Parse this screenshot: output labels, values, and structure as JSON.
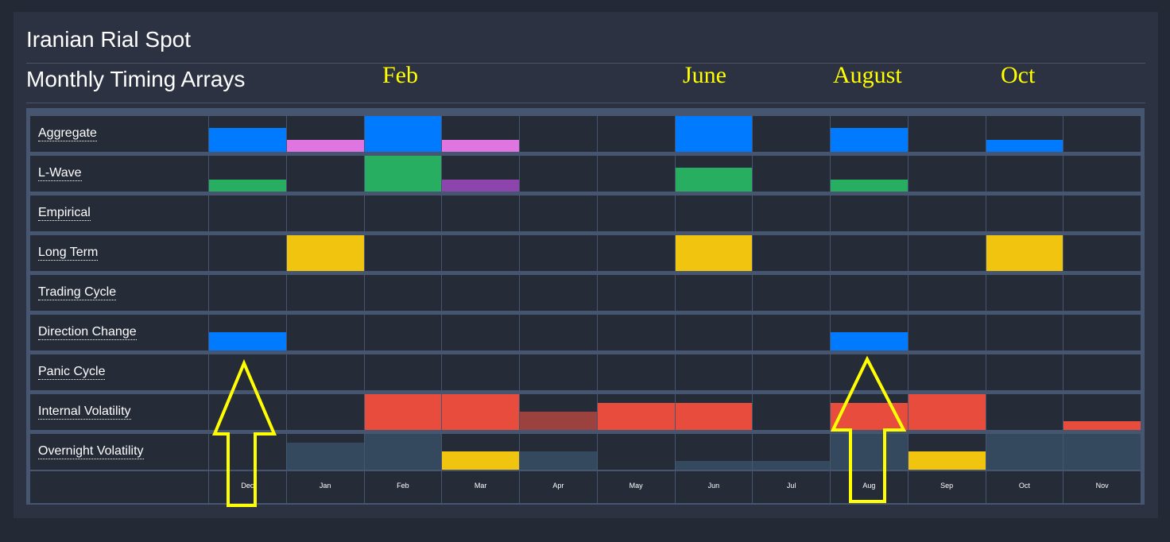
{
  "header": {
    "title": "Iranian Rial Spot",
    "subtitle": "Monthly Timing Arrays"
  },
  "annotations": {
    "labels": [
      "Feb",
      "June",
      "August",
      "Oct"
    ],
    "arrows": [
      "up-arrow-dec",
      "up-arrow-aug"
    ],
    "color": "#ffff00"
  },
  "chart_data": {
    "type": "heatmap",
    "title": "Monthly Timing Arrays",
    "categories": [
      "Dec",
      "Jan",
      "Feb",
      "Mar",
      "Apr",
      "May",
      "Jun",
      "Jul",
      "Aug",
      "Sep",
      "Oct",
      "Nov"
    ],
    "rows": [
      {
        "name": "Aggregate",
        "values": [
          0.67,
          0.33,
          1,
          0.33,
          0,
          0,
          1,
          0,
          0.67,
          0,
          0.33,
          0
        ],
        "colors": [
          "#007bff",
          "#e074e0",
          "#007bff",
          "#e074e0",
          "",
          "",
          "#007bff",
          "",
          "#007bff",
          "",
          "#007bff",
          ""
        ]
      },
      {
        "name": "L-Wave",
        "values": [
          0.33,
          0,
          1,
          0.33,
          0,
          0,
          0.67,
          0,
          0.33,
          0,
          0,
          0
        ],
        "colors": [
          "#27ae60",
          "",
          "#27ae60",
          "#8e44ad",
          "",
          "",
          "#27ae60",
          "",
          "#27ae60",
          "",
          "",
          ""
        ]
      },
      {
        "name": "Empirical",
        "values": [
          0,
          0,
          0,
          0,
          0,
          0,
          0,
          0,
          0,
          0,
          0,
          0
        ],
        "colors": []
      },
      {
        "name": "Long Term",
        "values": [
          0,
          1,
          0,
          0,
          0,
          0,
          1,
          0,
          0,
          0,
          1,
          0
        ],
        "colors": [
          "",
          "#f1c40f",
          "",
          "",
          "",
          "",
          "#f1c40f",
          "",
          "",
          "",
          "#f1c40f",
          ""
        ]
      },
      {
        "name": "Trading Cycle",
        "values": [
          0,
          0,
          0,
          0,
          0,
          0,
          0,
          0,
          0,
          0,
          0,
          0
        ],
        "colors": []
      },
      {
        "name": "Direction Change",
        "values": [
          0.5,
          0,
          0,
          0,
          0,
          0,
          0,
          0,
          0.5,
          0,
          0,
          0
        ],
        "colors": [
          "#007bff",
          "",
          "",
          "",
          "",
          "",
          "",
          "",
          "#007bff",
          "",
          "",
          ""
        ]
      },
      {
        "name": "Panic Cycle",
        "values": [
          0,
          0,
          0,
          0,
          0,
          0,
          0,
          0,
          0,
          0,
          0,
          0
        ],
        "colors": []
      },
      {
        "name": "Internal Volatility",
        "values": [
          0,
          0,
          1,
          1,
          0.5,
          0.75,
          0.75,
          0,
          0.75,
          1,
          0,
          0.25
        ],
        "colors": [
          "",
          "",
          "#e74c3c",
          "#e74c3c",
          "#9b423f",
          "#e74c3c",
          "#e74c3c",
          "",
          "#e74c3c",
          "#e74c3c",
          "",
          "#e74c3c"
        ]
      },
      {
        "name": "Overnight Volatility",
        "values": [
          0,
          0.75,
          1,
          0.5,
          0.5,
          0,
          0.25,
          0.25,
          1,
          0.5,
          1,
          1
        ],
        "colors": [
          "",
          "#34495e",
          "#34495e",
          "#f1c40f",
          "#34495e",
          "",
          "#34495e",
          "#34495e",
          "#34495e",
          "#f1c40f",
          "#34495e",
          "#34495e"
        ]
      }
    ]
  }
}
